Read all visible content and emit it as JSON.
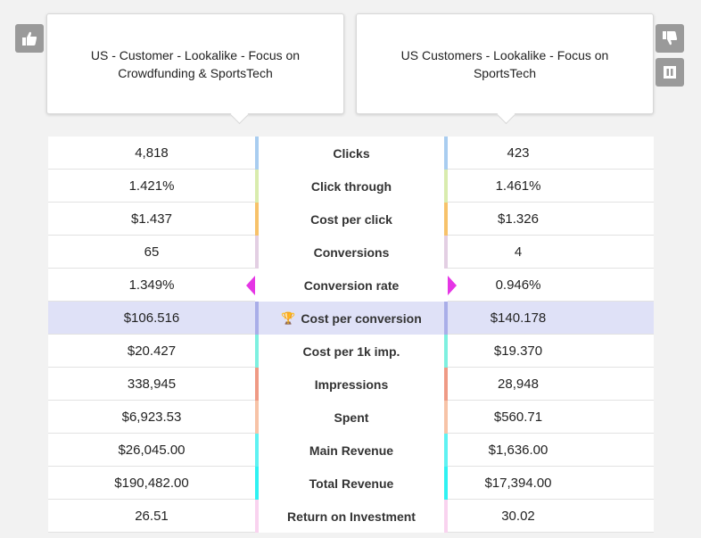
{
  "left_card": {
    "title": "US - Customer - Lookalike - Focus on Crowdfunding & SportsTech"
  },
  "right_card": {
    "title": "US Customers - Lookalike - Focus on SportsTech"
  },
  "buttons": {
    "thumbs_up": "thumbs-up-icon",
    "thumbs_down": "thumbs-down-icon",
    "pause": "pause-icon"
  },
  "rows": [
    {
      "metric": "Clicks",
      "left": "4,818",
      "right": "423",
      "color": "#a9cdf0"
    },
    {
      "metric": "Click through",
      "left": "1.421%",
      "right": "1.461%",
      "color": "#d9ecae"
    },
    {
      "metric": "Cost per click",
      "left": "$1.437",
      "right": "$1.326",
      "color": "#f7c26a"
    },
    {
      "metric": "Conversions",
      "left": "65",
      "right": "4",
      "color": "#e3cfe3"
    },
    {
      "metric": "Conversion rate",
      "left": "1.349%",
      "right": "0.946%",
      "color": "#e535e5"
    },
    {
      "metric": "Cost per conversion",
      "left": "$106.516",
      "right": "$140.178",
      "color": "#a9aee8"
    },
    {
      "metric": "Cost per 1k imp.",
      "left": "$20.427",
      "right": "$19.370",
      "color": "#7ef0e0"
    },
    {
      "metric": "Impressions",
      "left": "338,945",
      "right": "28,948",
      "color": "#ef9a85"
    },
    {
      "metric": "Spent",
      "left": "$6,923.53",
      "right": "$560.71",
      "color": "#f7c3a7"
    },
    {
      "metric": "Main Revenue",
      "left": "$26,045.00",
      "right": "$1,636.00",
      "color": "#5ff2f2"
    },
    {
      "metric": "Total Revenue",
      "left": "$190,482.00",
      "right": "$17,394.00",
      "color": "#2ff2f2"
    },
    {
      "metric": "Return on Investment",
      "left": "26.51",
      "right": "30.02",
      "color": "#f9d3ef"
    }
  ]
}
